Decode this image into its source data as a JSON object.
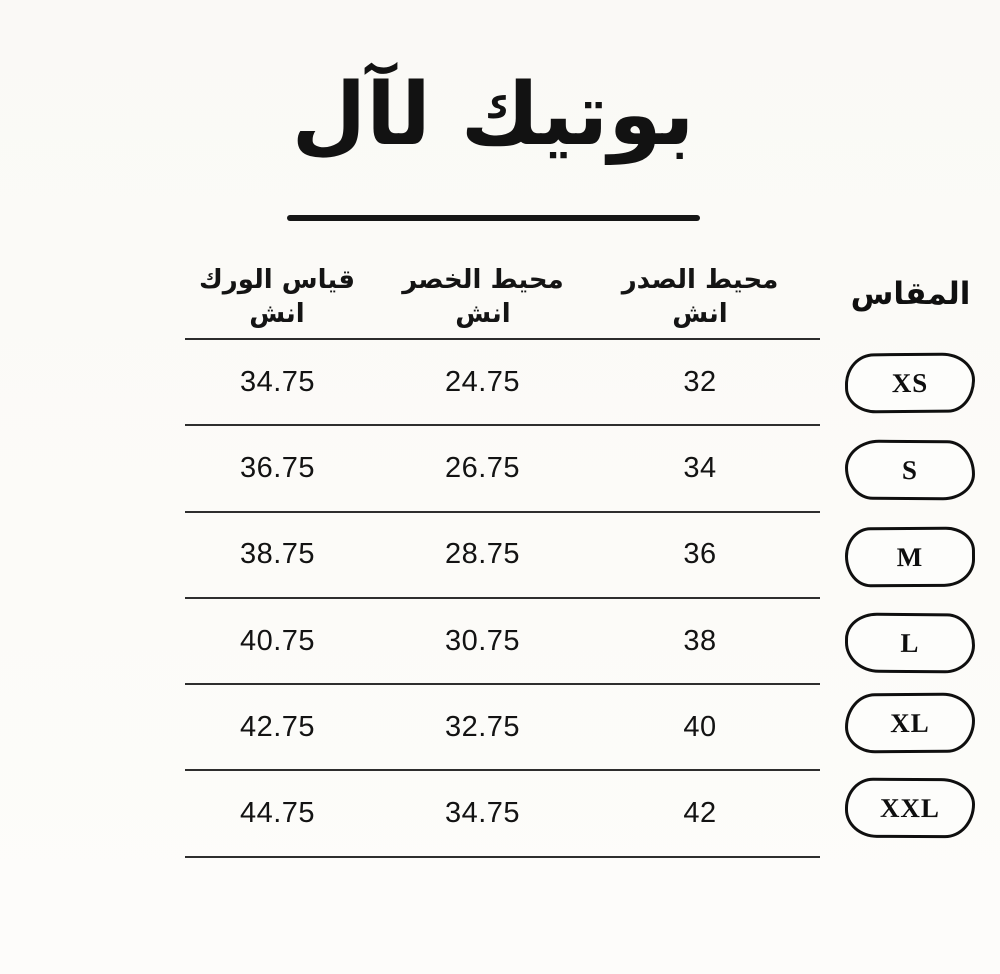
{
  "page": {
    "title": "بوتيك لآل",
    "background_color": "#fbfaf7",
    "text_color": "#151515",
    "line_color": "#2e2e2e"
  },
  "table": {
    "size_header": "المقاس",
    "columns": [
      {
        "key": "chest",
        "label": "محيط الصدر",
        "unit": "انش"
      },
      {
        "key": "waist",
        "label": "محيط الخصر",
        "unit": "انش"
      },
      {
        "key": "hip",
        "label": "قياس الورك",
        "unit": "انش"
      }
    ],
    "rows": [
      {
        "size": "XS",
        "chest": "32",
        "waist": "24.75",
        "hip": "34.75"
      },
      {
        "size": "S",
        "chest": "34",
        "waist": "26.75",
        "hip": "36.75"
      },
      {
        "size": "M",
        "chest": "36",
        "waist": "28.75",
        "hip": "38.75"
      },
      {
        "size": "L",
        "chest": "38",
        "waist": "30.75",
        "hip": "40.75"
      },
      {
        "size": "XL",
        "chest": "40",
        "waist": "32.75",
        "hip": "42.75"
      },
      {
        "size": "XXL",
        "chest": "42",
        "waist": "34.75",
        "hip": "44.75"
      }
    ]
  }
}
